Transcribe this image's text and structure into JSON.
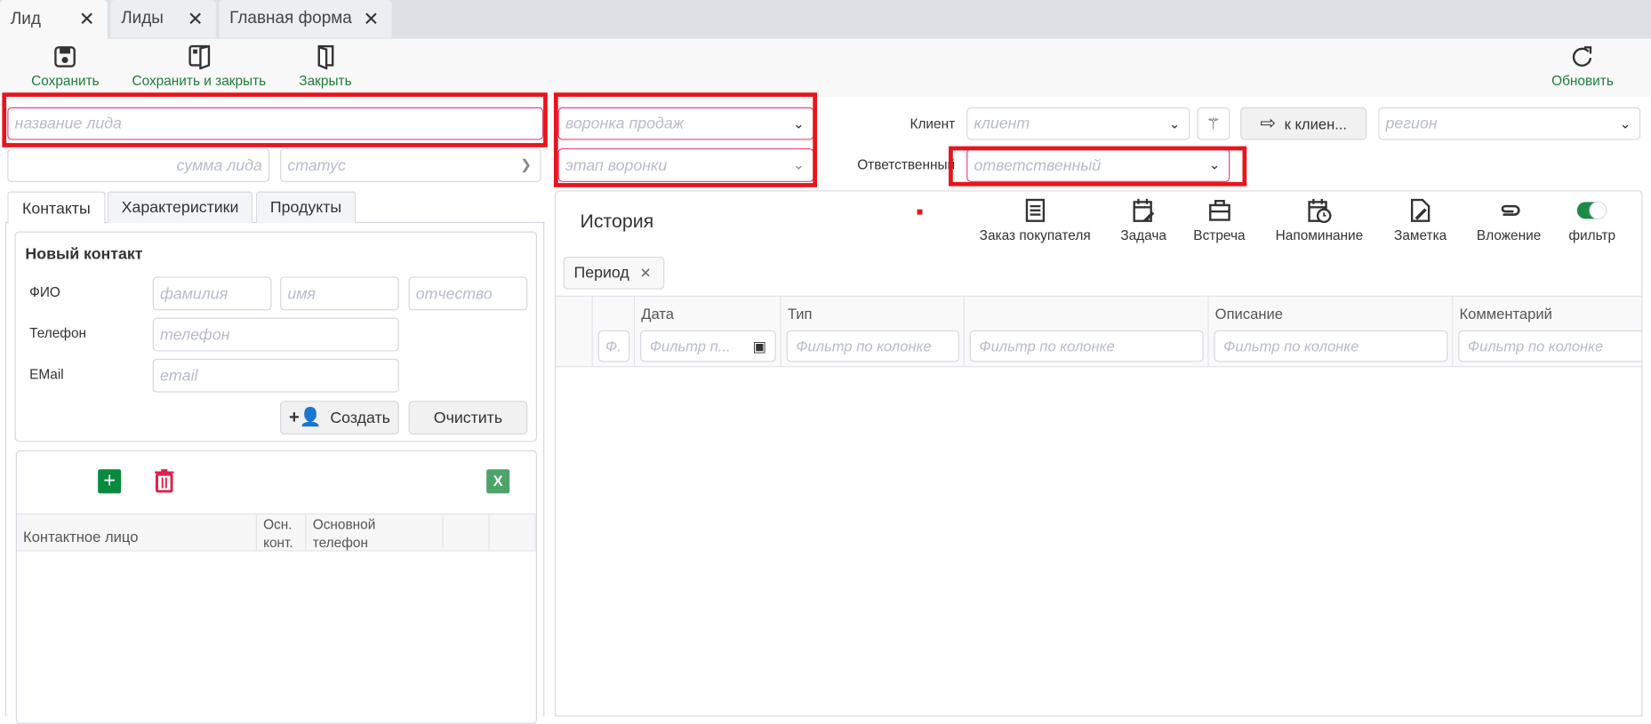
{
  "tabs": [
    {
      "label": "Лид",
      "active": true
    },
    {
      "label": "Лиды"
    },
    {
      "label": "Главная форма"
    }
  ],
  "toolbar": {
    "save": "Сохранить",
    "save_close": "Сохранить и закрыть",
    "close": "Закрыть",
    "refresh": "Обновить"
  },
  "form": {
    "lead_name_placeholder": "название лида",
    "lead_sum_placeholder": "сумма лида",
    "status_placeholder": "статус",
    "funnel_placeholder": "воронка продаж",
    "stage_placeholder": "этап воронки",
    "client_label": "Клиент",
    "client_placeholder": "клиент",
    "to_client_button": "к клиен...",
    "region_placeholder": "регион",
    "responsible_label": "Ответственный",
    "responsible_placeholder": "ответственный"
  },
  "left_tabs": [
    "Контакты",
    "Характеристики",
    "Продукты"
  ],
  "new_contact": {
    "title": "Новый контакт",
    "fio_label": "ФИО",
    "surname_placeholder": "фамилия",
    "name_placeholder": "имя",
    "patronymic_placeholder": "отчество",
    "phone_label": "Телефон",
    "phone_placeholder": "телефон",
    "email_label": "EMail",
    "email_placeholder": "email",
    "create_button": "Создать",
    "clear_button": "Очистить"
  },
  "contacts_grid": {
    "excel_label": "X",
    "columns": [
      "Контактное лицо",
      "Осн. конт.",
      "Основной телефон",
      "",
      ""
    ]
  },
  "history": {
    "title": "История",
    "actions": [
      "Заказ покупателя",
      "Задача",
      "Встреча",
      "Напоминание",
      "Заметка",
      "Вложение",
      "фильтр"
    ],
    "filter_toggle_on": true,
    "period_chip": "Период",
    "columns": [
      "",
      "",
      "Дата",
      "Тип",
      "",
      "Описание",
      "Комментарий"
    ],
    "filters": [
      "",
      "Ф.",
      "Фильтр п...",
      "Фильтр по колонке",
      "Фильтр по колонке",
      "Фильтр по колонке",
      "Фильтр по колонке"
    ]
  },
  "colors": {
    "accent_green": "#1e7d3a",
    "highlight_red": "#e8141c",
    "required_pink": "#e8457a"
  }
}
